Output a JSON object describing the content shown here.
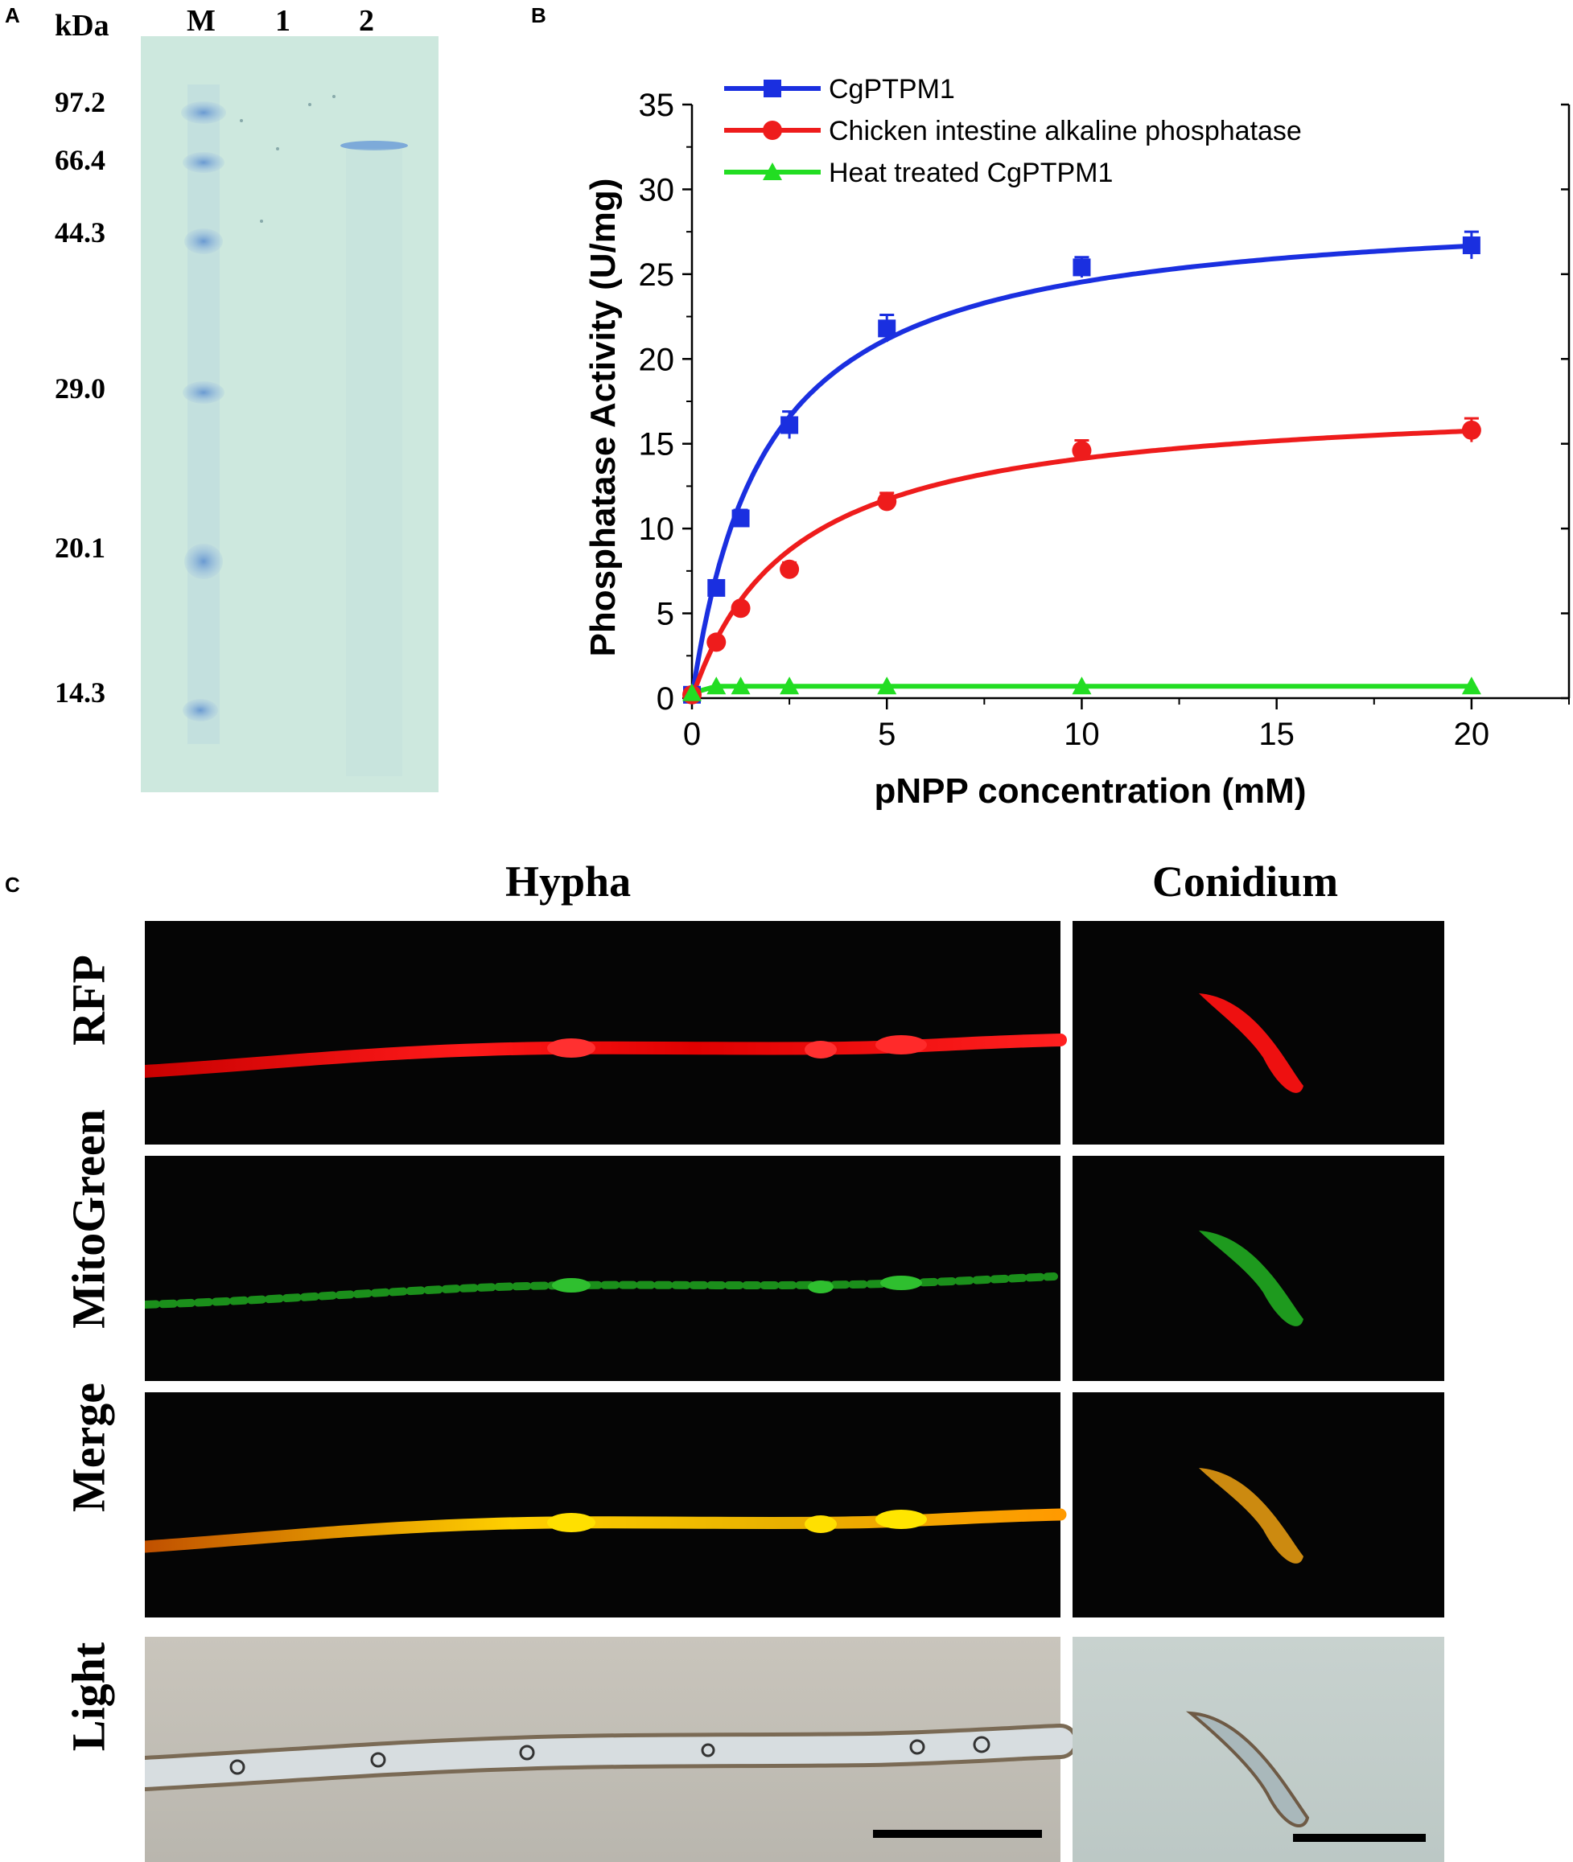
{
  "panel_a": {
    "letter": "A",
    "unit_label": "kDa",
    "lanes": [
      "M",
      "1",
      "2"
    ],
    "markers": [
      "97.2",
      "66.4",
      "44.3",
      "29.0",
      "20.1",
      "14.3"
    ]
  },
  "panel_b": {
    "letter": "B"
  },
  "panel_c": {
    "letter": "C",
    "col_hypha": "Hypha",
    "col_conidium": "Conidium",
    "rows": [
      "RFP",
      "MitoGreen",
      "Merge",
      "Light"
    ]
  },
  "colors": {
    "blue": "#1a2fe0",
    "red": "#ee1c1c",
    "green": "#22dd22",
    "gel_bg": "#cfe9df",
    "marker_band": "#6f9fd8"
  },
  "chart_data": {
    "type": "line",
    "xlabel": "pNPP concentration (mM)",
    "ylabel": "Phosphatase Activity (U/mg)",
    "xlim": [
      0,
      22.5
    ],
    "ylim": [
      0,
      35
    ],
    "xticks": [
      0,
      5,
      10,
      15,
      20
    ],
    "yticks": [
      0,
      5,
      10,
      15,
      20,
      25,
      30,
      35
    ],
    "series": [
      {
        "name": "CgPTPM1",
        "marker": "square",
        "color": "#1a2fe0",
        "x": [
          0,
          0.625,
          1.25,
          2.5,
          5,
          10,
          20
        ],
        "y": [
          0.2,
          6.5,
          10.6,
          16.1,
          21.8,
          25.4,
          26.7
        ],
        "err": [
          0,
          0.4,
          0.5,
          0.8,
          0.8,
          0.6,
          0.8
        ],
        "fit": {
          "model": "michaelis-menten",
          "vmax": 29.2,
          "km": 1.9
        }
      },
      {
        "name": "Chicken intestine alkaline phosphatase",
        "marker": "circle",
        "color": "#ee1c1c",
        "x": [
          0,
          0.625,
          1.25,
          2.5,
          5,
          10,
          20
        ],
        "y": [
          0.2,
          3.3,
          5.3,
          7.6,
          11.6,
          14.6,
          15.8
        ],
        "err": [
          0,
          0.3,
          0.3,
          0.4,
          0.5,
          0.6,
          0.7
        ],
        "fit": {
          "model": "michaelis-menten",
          "vmax": 17.8,
          "km": 2.6
        }
      },
      {
        "name": "Heat treated CgPTPM1",
        "marker": "triangle",
        "color": "#22dd22",
        "x": [
          0,
          0.625,
          1.25,
          2.5,
          5,
          10,
          20
        ],
        "y": [
          0.3,
          0.7,
          0.7,
          0.7,
          0.7,
          0.7,
          0.7
        ],
        "err": [
          0,
          0,
          0,
          0,
          0,
          0,
          0
        ]
      }
    ]
  }
}
